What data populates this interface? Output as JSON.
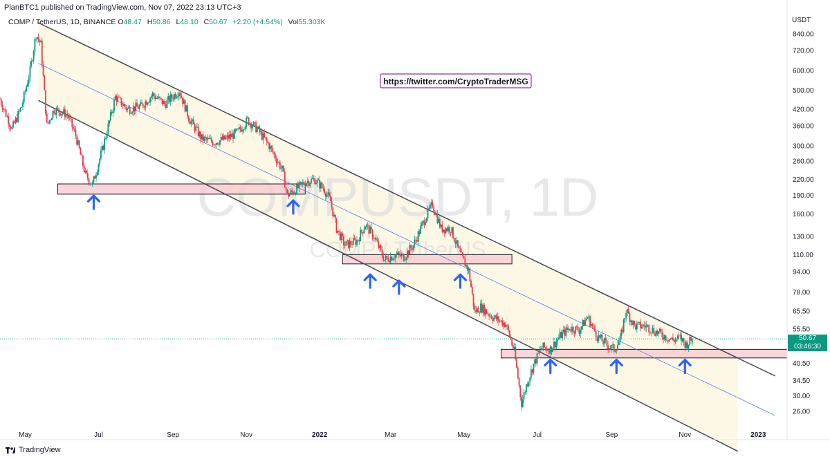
{
  "header": {
    "published": "PlanBTC1 published on TradingView.com, Nov 07, 2022 23:13 UTC+3"
  },
  "symbol": {
    "name": "COMP / TetherUS, 1D, BINANCE",
    "o_label": "O",
    "o": "48.47",
    "h_label": "H",
    "h": "50.86",
    "l_label": "L",
    "l": "48.10",
    "c_label": "C",
    "c": "50.67",
    "change": "+2.20 (+4.54%)",
    "vol_label": "Vol",
    "vol": "55.303K"
  },
  "watermark": {
    "line1": "COMPUSDT, 1D",
    "line2": "COMP / TetherUS"
  },
  "annotation": {
    "link": "https://twitter.com/CryptoTraderMSG"
  },
  "price_badge": {
    "price": "50.67",
    "countdown": "03:46:30"
  },
  "footer": {
    "brand": "TradingView"
  },
  "colors": {
    "up": "#089981",
    "down": "#f23645",
    "support": "#f7c8cf",
    "arrow": "#2962ff",
    "channel": "#fdf6e0",
    "midline": "#5b7bf0"
  },
  "chart_data": {
    "type": "candlestick",
    "symbol": "COMPUSDT",
    "timeframe": "1D",
    "yscale": "log",
    "ylabel": "USDT",
    "ylim": [
      23,
      1000
    ],
    "xlim": [
      "2021-04-10",
      "2023-01-25"
    ],
    "x_ticks": [
      {
        "date": "2021-05-01",
        "label": "May"
      },
      {
        "date": "2021-07-01",
        "label": "Jul"
      },
      {
        "date": "2021-09-01",
        "label": "Sep"
      },
      {
        "date": "2021-11-01",
        "label": "Nov"
      },
      {
        "date": "2022-01-01",
        "label": "2022"
      },
      {
        "date": "2022-03-01",
        "label": "Mar"
      },
      {
        "date": "2022-05-01",
        "label": "May"
      },
      {
        "date": "2022-07-01",
        "label": "Jul"
      },
      {
        "date": "2022-09-01",
        "label": "Sep"
      },
      {
        "date": "2022-11-01",
        "label": "Nov"
      },
      {
        "date": "2023-01-01",
        "label": "2023"
      }
    ],
    "y_ticks": [
      840,
      720,
      600,
      500,
      420,
      360,
      300,
      260,
      220,
      190,
      160,
      130,
      110,
      94,
      78,
      65.5,
      55.5,
      40.5,
      34.5,
      30,
      26
    ],
    "price_path": [
      [
        "2021-04-10",
        460
      ],
      [
        "2021-04-20",
        350
      ],
      [
        "2021-04-28",
        430
      ],
      [
        "2021-05-05",
        600
      ],
      [
        "2021-05-10",
        840
      ],
      [
        "2021-05-14",
        760
      ],
      [
        "2021-05-19",
        360
      ],
      [
        "2021-05-25",
        420
      ],
      [
        "2021-06-05",
        400
      ],
      [
        "2021-06-12",
        330
      ],
      [
        "2021-06-20",
        230
      ],
      [
        "2021-06-26",
        210
      ],
      [
        "2021-07-05",
        300
      ],
      [
        "2021-07-15",
        470
      ],
      [
        "2021-07-25",
        420
      ],
      [
        "2021-08-05",
        430
      ],
      [
        "2021-08-15",
        480
      ],
      [
        "2021-08-25",
        440
      ],
      [
        "2021-09-06",
        500
      ],
      [
        "2021-09-15",
        380
      ],
      [
        "2021-09-25",
        320
      ],
      [
        "2021-10-05",
        310
      ],
      [
        "2021-10-15",
        320
      ],
      [
        "2021-10-25",
        340
      ],
      [
        "2021-11-02",
        380
      ],
      [
        "2021-11-10",
        350
      ],
      [
        "2021-11-20",
        300
      ],
      [
        "2021-12-01",
        240
      ],
      [
        "2021-12-05",
        190
      ],
      [
        "2021-12-12",
        200
      ],
      [
        "2021-12-20",
        215
      ],
      [
        "2021-12-28",
        220
      ],
      [
        "2022-01-05",
        200
      ],
      [
        "2022-01-10",
        180
      ],
      [
        "2022-01-15",
        140
      ],
      [
        "2022-01-22",
        120
      ],
      [
        "2022-02-01",
        125
      ],
      [
        "2022-02-08",
        145
      ],
      [
        "2022-02-15",
        130
      ],
      [
        "2022-02-24",
        105
      ],
      [
        "2022-03-05",
        110
      ],
      [
        "2022-03-12",
        108
      ],
      [
        "2022-03-20",
        120
      ],
      [
        "2022-03-30",
        155
      ],
      [
        "2022-04-05",
        175
      ],
      [
        "2022-04-12",
        140
      ],
      [
        "2022-04-20",
        140
      ],
      [
        "2022-04-28",
        110
      ],
      [
        "2022-05-05",
        95
      ],
      [
        "2022-05-10",
        65
      ],
      [
        "2022-05-15",
        68
      ],
      [
        "2022-05-25",
        62
      ],
      [
        "2022-06-05",
        58
      ],
      [
        "2022-06-12",
        45
      ],
      [
        "2022-06-18",
        28
      ],
      [
        "2022-06-22",
        33
      ],
      [
        "2022-06-28",
        40
      ],
      [
        "2022-07-05",
        47
      ],
      [
        "2022-07-12",
        46
      ],
      [
        "2022-07-20",
        52
      ],
      [
        "2022-07-28",
        56
      ],
      [
        "2022-08-05",
        55
      ],
      [
        "2022-08-12",
        62
      ],
      [
        "2022-08-20",
        52
      ],
      [
        "2022-08-28",
        48
      ],
      [
        "2022-09-03",
        46
      ],
      [
        "2022-09-08",
        50
      ],
      [
        "2022-09-13",
        66
      ],
      [
        "2022-09-20",
        57
      ],
      [
        "2022-09-30",
        57
      ],
      [
        "2022-10-08",
        54
      ],
      [
        "2022-10-15",
        52
      ],
      [
        "2022-10-22",
        50
      ],
      [
        "2022-10-28",
        51
      ],
      [
        "2022-11-02",
        48
      ],
      [
        "2022-11-07",
        50.67
      ]
    ],
    "trendlines": [
      {
        "name": "upper-channel",
        "from": [
          "2021-05-12",
          930
        ],
        "to": [
          "2023-01-15",
          36
        ]
      },
      {
        "name": "median-line",
        "from": [
          "2021-05-12",
          640
        ],
        "to": [
          "2023-01-15",
          25
        ]
      },
      {
        "name": "lower-channel",
        "from": [
          "2021-05-12",
          455
        ],
        "to": [
          "2022-12-15",
          18
        ]
      }
    ],
    "support_zones": [
      {
        "from": "2021-05-28",
        "to": "2021-12-20",
        "low": 192,
        "high": 211
      },
      {
        "from": "2022-01-20",
        "to": "2022-06-10",
        "low": 101,
        "high": 110
      },
      {
        "from": "2022-06-01",
        "to": "2023-01-25",
        "low": 42.5,
        "high": 46
      }
    ],
    "markers": [
      {
        "type": "up-arrow",
        "date": "2021-06-27",
        "price": 188
      },
      {
        "type": "up-arrow",
        "date": "2021-12-10",
        "price": 180
      },
      {
        "type": "up-arrow",
        "date": "2022-02-12",
        "price": 91
      },
      {
        "type": "up-arrow",
        "date": "2022-03-08",
        "price": 86
      },
      {
        "type": "up-arrow",
        "date": "2022-04-28",
        "price": 91
      },
      {
        "type": "up-arrow",
        "date": "2022-07-12",
        "price": 41.5
      },
      {
        "type": "up-arrow",
        "date": "2022-09-05",
        "price": 41.5
      },
      {
        "type": "up-arrow",
        "date": "2022-11-01",
        "price": 41.5
      }
    ],
    "last_price": 50.67
  }
}
